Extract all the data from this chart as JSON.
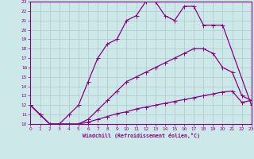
{
  "xlabel": "Windchill (Refroidissement éolien,°C)",
  "background_color": "#cce8e8",
  "line_color": "#880088",
  "grid_color": "#b0c8c8",
  "xlim": [
    0,
    23
  ],
  "ylim": [
    10,
    23
  ],
  "xticks": [
    0,
    1,
    2,
    3,
    4,
    5,
    6,
    7,
    8,
    9,
    10,
    11,
    12,
    13,
    14,
    15,
    16,
    17,
    18,
    19,
    20,
    21,
    22,
    23
  ],
  "yticks": [
    10,
    11,
    12,
    13,
    14,
    15,
    16,
    17,
    18,
    19,
    20,
    21,
    22,
    23
  ],
  "line1_x": [
    0,
    1,
    2,
    3,
    4,
    5,
    6,
    7,
    8,
    9,
    10,
    11,
    12,
    13,
    14,
    15,
    16,
    17,
    18,
    19,
    20
  ],
  "line1_y": [
    12,
    11,
    10,
    10,
    11,
    12,
    14.5,
    17,
    18.5,
    19,
    21,
    21.5,
    23,
    23,
    21.5,
    21,
    22.5,
    22.5,
    20.5,
    20.5,
    20.5
  ],
  "line1_end_x": [
    23
  ],
  "line1_end_y": [
    12
  ],
  "line2_x": [
    0,
    1,
    2,
    3,
    4,
    5,
    6,
    7,
    8,
    9,
    10,
    11,
    12,
    13,
    14,
    15,
    16,
    17,
    18,
    19,
    20,
    21,
    22,
    23
  ],
  "line2_y": [
    12,
    11,
    10,
    10,
    10,
    10,
    10.5,
    11.5,
    12.5,
    13.5,
    14.5,
    15,
    15.5,
    16,
    16.5,
    17,
    17.5,
    18,
    18,
    17.5,
    16,
    15.5,
    13,
    12.5
  ],
  "line3_x": [
    0,
    1,
    2,
    3,
    4,
    5,
    6,
    7,
    8,
    9,
    10,
    11,
    12,
    13,
    14,
    15,
    16,
    17,
    18,
    19,
    20,
    21,
    22,
    23
  ],
  "line3_y": [
    12,
    11,
    10,
    10,
    10,
    10,
    10.2,
    10.5,
    10.8,
    11.1,
    11.3,
    11.6,
    11.8,
    12.0,
    12.2,
    12.4,
    12.6,
    12.8,
    13.0,
    13.2,
    13.4,
    13.5,
    12.3,
    12.5
  ]
}
